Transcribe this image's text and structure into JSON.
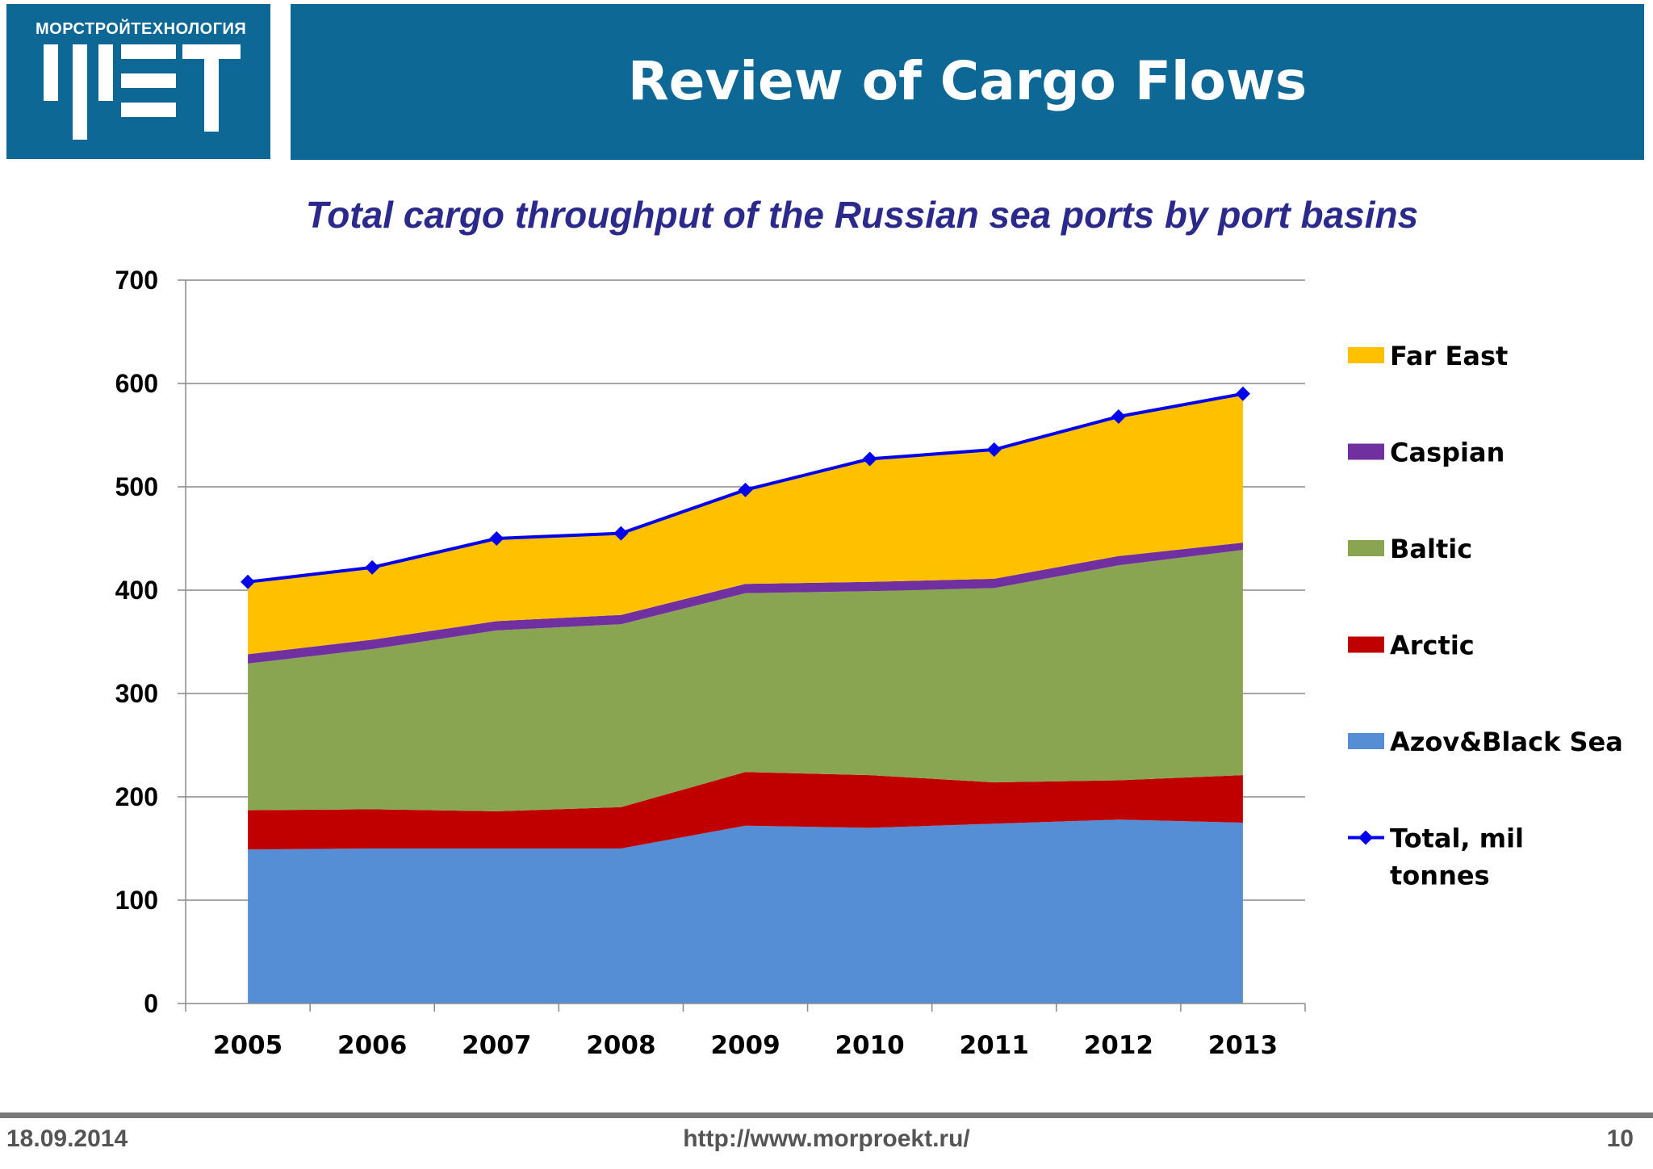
{
  "header": {
    "logo_text": "МОРСТРОЙТЕХНОЛОГИЯ",
    "title": "Review of Cargo Flows"
  },
  "footer": {
    "date": "18.09.2014",
    "url": "http://www.morproekt.ru/",
    "page_number": "10"
  },
  "colors": {
    "header_bg": "#0e6896",
    "subtitle": "#2b2a8c",
    "azov_black_sea": "#558ed5",
    "arctic": "#c00000",
    "baltic": "#8aa552",
    "caspian": "#7030a0",
    "far_east": "#ffc000",
    "total": "#0000ee"
  },
  "chart_data": {
    "type": "area",
    "stacked": true,
    "title": "Total cargo throughput of the Russian sea ports by port basins",
    "xlabel": "",
    "ylabel": "",
    "ylim": [
      0,
      700
    ],
    "yticks": [
      0,
      100,
      200,
      300,
      400,
      500,
      600,
      700
    ],
    "grid": true,
    "legend_position": "right",
    "categories": [
      "2005",
      "2006",
      "2007",
      "2008",
      "2009",
      "2010",
      "2011",
      "2012",
      "2013"
    ],
    "series": [
      {
        "name": "Azov&Black Sea",
        "values": [
          149,
          150,
          150,
          150,
          172,
          170,
          174,
          178,
          175
        ]
      },
      {
        "name": "Arctic",
        "values": [
          38,
          38,
          36,
          40,
          52,
          51,
          40,
          38,
          46
        ]
      },
      {
        "name": "Baltic",
        "values": [
          142,
          155,
          175,
          177,
          173,
          178,
          188,
          208,
          218
        ]
      },
      {
        "name": "Caspian",
        "values": [
          9,
          9,
          9,
          9,
          9,
          9,
          9,
          9,
          7
        ]
      },
      {
        "name": "Far East",
        "values": [
          70,
          70,
          81,
          79,
          91,
          119,
          125,
          135,
          145
        ]
      }
    ],
    "line_series": {
      "name": "Total, mil tonnes",
      "values": [
        408,
        422,
        450,
        455,
        497,
        527,
        536,
        568,
        590
      ]
    }
  }
}
